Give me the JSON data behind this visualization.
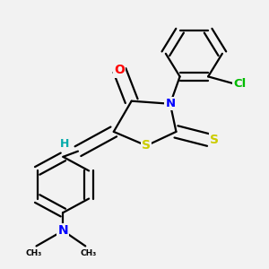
{
  "bg_color": "#f2f2f2",
  "bond_color": "#000000",
  "atom_colors": {
    "O": "#ff0000",
    "N": "#0000ff",
    "S": "#cccc00",
    "Cl": "#00bb00",
    "H": "#00aaaa",
    "C": "#000000"
  },
  "line_width": 1.6,
  "dbo": 0.018
}
